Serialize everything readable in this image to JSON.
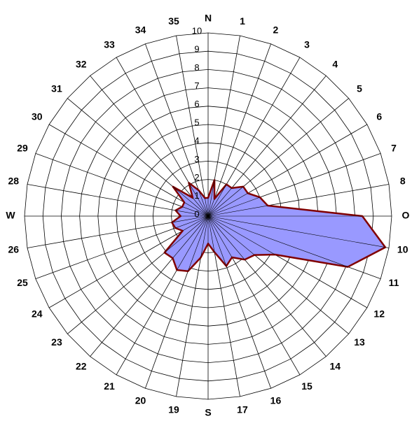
{
  "chart_data": {
    "type": "radar",
    "categories": [
      "N",
      "1",
      "2",
      "3",
      "4",
      "5",
      "6",
      "7",
      "8",
      "O",
      "10",
      "11",
      "12",
      "13",
      "14",
      "15",
      "16",
      "17",
      "S",
      "19",
      "20",
      "21",
      "22",
      "23",
      "24",
      "25",
      "26",
      "W",
      "28",
      "29",
      "30",
      "31",
      "32",
      "33",
      "34",
      "35"
    ],
    "values": [
      1,
      2,
      1,
      2,
      2,
      2.5,
      2.5,
      3,
      3.3,
      8.4,
      9.8,
      8.1,
      4.2,
      3.3,
      3.1,
      2.6,
      2.9,
      2,
      1.5,
      2.3,
      3.2,
      3.4,
      3,
      3.1,
      1.6,
      1.9,
      2,
      1.5,
      1.8,
      1.5,
      1.5,
      2.5,
      1.3,
      2.1,
      1.5,
      1
    ],
    "ylim": [
      0,
      10
    ],
    "yticks": [
      0,
      1,
      2,
      3,
      4,
      5,
      6,
      7,
      8,
      9,
      10
    ],
    "color": "#9999ff",
    "line_color": "#800000",
    "grid": true
  }
}
